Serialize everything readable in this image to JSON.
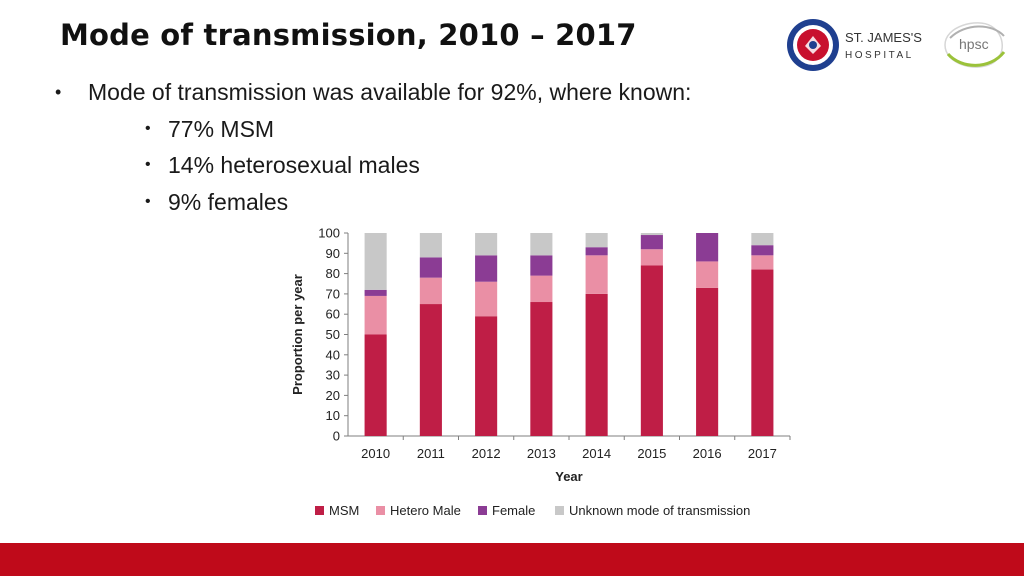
{
  "slide": {
    "title": "Mode of transmission, 2010 – 2017",
    "bullet_main": "Mode of transmission was available for 92%, where known:",
    "bullets_sub": [
      "77% MSM",
      "14% heterosexual males",
      "9% females"
    ]
  },
  "logos": {
    "hospital_name_line1": "ST. JAMES'S",
    "hospital_name_line2": "HOSPITAL",
    "hpsc": "hpsc"
  },
  "colors": {
    "accent_bar": "#bf0a1a",
    "msm": "#bf1e46",
    "hetero_male": "#ea8fa5",
    "female": "#8b3c94",
    "unknown": "#c8c8c8"
  },
  "chart_data": {
    "type": "bar",
    "stacked": true,
    "categories": [
      "2010",
      "2011",
      "2012",
      "2013",
      "2014",
      "2015",
      "2016",
      "2017"
    ],
    "series": [
      {
        "name": "MSM",
        "values": [
          50,
          65,
          59,
          66,
          70,
          84,
          73,
          82
        ]
      },
      {
        "name": "Hetero Male",
        "values": [
          19,
          13,
          17,
          13,
          19,
          8,
          13,
          7
        ]
      },
      {
        "name": "Female",
        "values": [
          3,
          10,
          13,
          10,
          4,
          7,
          14,
          5
        ]
      },
      {
        "name": "Unknown mode of transmission",
        "values": [
          28,
          12,
          11,
          11,
          7,
          1,
          0,
          6
        ]
      }
    ],
    "title": "",
    "xlabel": "Year",
    "ylabel": "Proportion per year",
    "ylim": [
      0,
      100
    ],
    "yticks": [
      "0",
      "10",
      "20",
      "30",
      "40",
      "50",
      "60",
      "70",
      "80",
      "90",
      "100"
    ],
    "legend": "bottom"
  }
}
